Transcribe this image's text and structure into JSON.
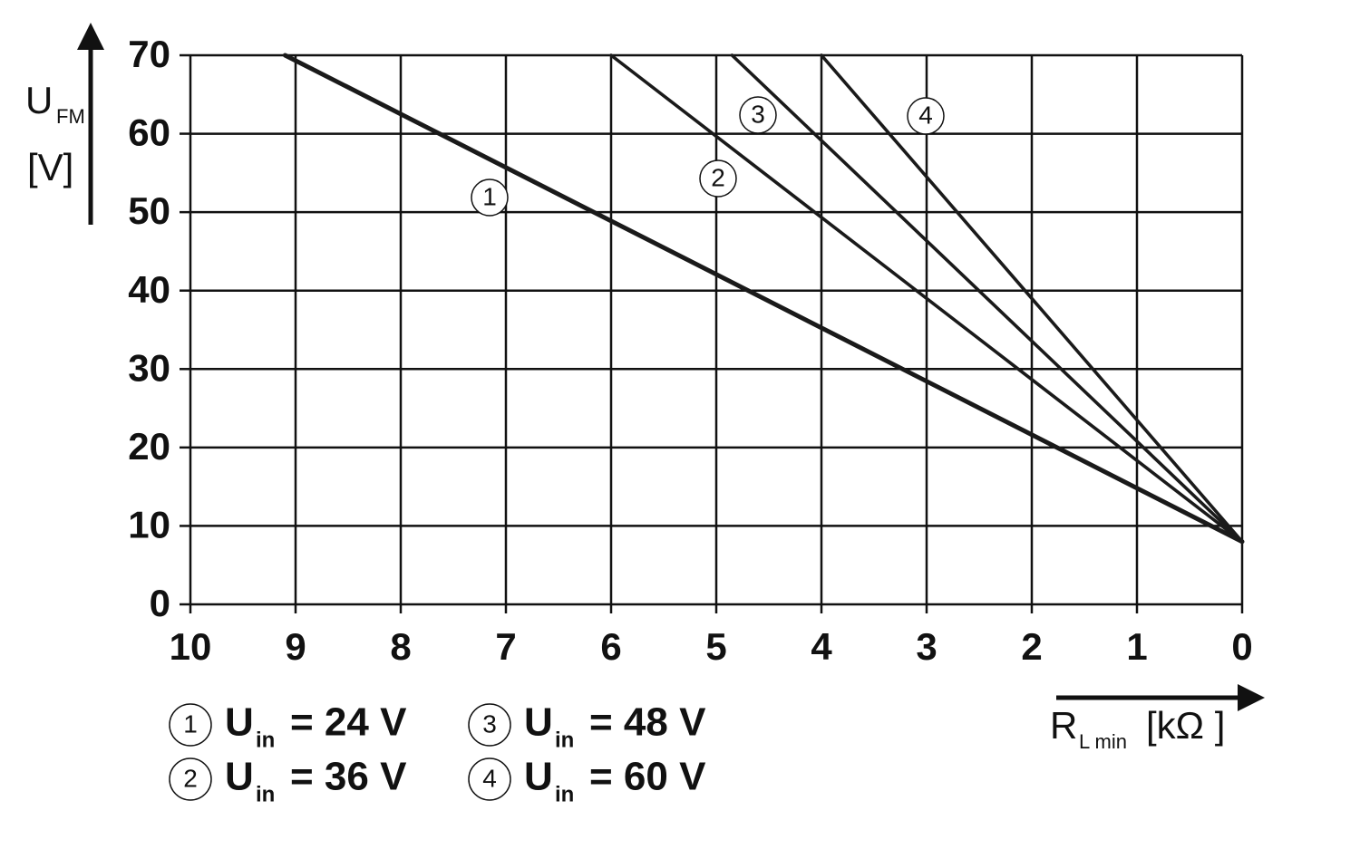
{
  "chart_data": {
    "type": "line",
    "y_label": "U",
    "y_label_sub": "FM",
    "y_unit": "[V]",
    "x_label": "R",
    "x_label_sub": "L min",
    "x_unit": "[kΩ ]",
    "xlim": [
      10,
      0
    ],
    "xticks": [
      10,
      9,
      8,
      7,
      6,
      5,
      4,
      3,
      2,
      1,
      0
    ],
    "ylim": [
      0,
      70
    ],
    "yticks": [
      0,
      10,
      20,
      30,
      40,
      50,
      60,
      70
    ],
    "grid": true,
    "legend_symbol": "U",
    "legend_sub": "in",
    "series": [
      {
        "label": "1",
        "name": "= 24 V",
        "color": "#1a1a1a",
        "x": [
          9.1,
          0
        ],
        "values": [
          70,
          8
        ]
      },
      {
        "label": "2",
        "name": "= 36 V",
        "color": "#1a1a1a",
        "x": [
          6.0,
          0
        ],
        "values": [
          70,
          8
        ]
      },
      {
        "label": "3",
        "name": "= 48 V",
        "color": "#1a1a1a",
        "x": [
          4.85,
          0
        ],
        "values": [
          70,
          8
        ]
      },
      {
        "label": "4",
        "name": "= 60 V",
        "color": "#1a1a1a",
        "x": [
          4.0,
          0
        ],
        "values": [
          70,
          8
        ]
      }
    ]
  }
}
